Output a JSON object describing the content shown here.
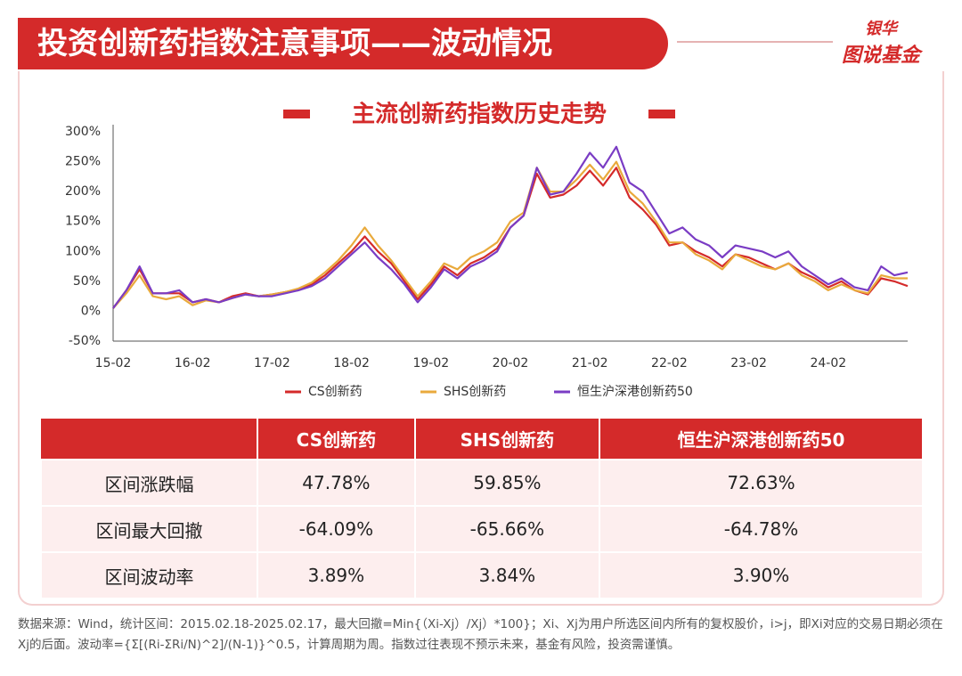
{
  "header": {
    "title": "投资创新药指数注意事项——波动情况",
    "brand_top": "银华",
    "brand_bottom": "图说基金"
  },
  "chart_data": {
    "type": "line",
    "title": "主流创新药指数历史走势",
    "categories": [
      "15-02",
      null,
      null,
      null,
      null,
      null,
      "16-02",
      null,
      null,
      null,
      null,
      null,
      "17-02",
      null,
      null,
      null,
      null,
      null,
      "18-02",
      null,
      null,
      null,
      null,
      null,
      "19-02",
      null,
      null,
      null,
      null,
      null,
      "20-02",
      null,
      null,
      null,
      null,
      null,
      "21-02",
      null,
      null,
      null,
      null,
      null,
      "22-02",
      null,
      null,
      null,
      null,
      null,
      "23-02",
      null,
      null,
      null,
      null,
      null,
      "24-02",
      null,
      null,
      null,
      null,
      null,
      null
    ],
    "series": [
      {
        "name": "CS创新药",
        "color": "#d42a2a",
        "values": [
          5,
          35,
          70,
          30,
          30,
          30,
          15,
          20,
          15,
          25,
          30,
          25,
          28,
          32,
          35,
          45,
          60,
          80,
          100,
          125,
          100,
          80,
          50,
          20,
          45,
          75,
          60,
          80,
          90,
          105,
          140,
          160,
          230,
          190,
          195,
          210,
          235,
          210,
          240,
          190,
          170,
          145,
          110,
          115,
          100,
          90,
          75,
          95,
          90,
          80,
          70,
          80,
          65,
          55,
          40,
          50,
          35,
          28,
          55,
          50,
          42
        ]
      },
      {
        "name": "SHS创新药",
        "color": "#e9aa3c",
        "values": [
          5,
          30,
          60,
          25,
          20,
          25,
          10,
          18,
          15,
          22,
          28,
          25,
          28,
          32,
          38,
          48,
          65,
          85,
          110,
          140,
          110,
          85,
          55,
          25,
          50,
          80,
          70,
          90,
          100,
          115,
          150,
          165,
          240,
          200,
          200,
          220,
          245,
          220,
          250,
          200,
          180,
          150,
          115,
          115,
          95,
          85,
          70,
          95,
          85,
          75,
          70,
          80,
          60,
          50,
          35,
          45,
          35,
          30,
          60,
          55,
          55
        ]
      },
      {
        "name": "恒生沪深港创新药50",
        "color": "#7a3cc4",
        "values": [
          5,
          35,
          75,
          30,
          30,
          35,
          15,
          20,
          15,
          22,
          28,
          25,
          25,
          30,
          35,
          42,
          55,
          75,
          95,
          115,
          90,
          70,
          45,
          15,
          40,
          70,
          55,
          75,
          85,
          100,
          140,
          160,
          240,
          195,
          200,
          230,
          265,
          240,
          275,
          215,
          200,
          165,
          130,
          140,
          120,
          110,
          90,
          110,
          105,
          100,
          90,
          100,
          75,
          60,
          45,
          55,
          40,
          35,
          75,
          60,
          65
        ]
      }
    ],
    "ylim": [
      -50,
      300
    ],
    "yticks": [
      {
        "value": -50,
        "label": "-50%"
      },
      {
        "value": 0,
        "label": "0%"
      },
      {
        "value": 50,
        "label": "50%"
      },
      {
        "value": 100,
        "label": "100%"
      },
      {
        "value": 150,
        "label": "150%"
      },
      {
        "value": 200,
        "label": "200%"
      },
      {
        "value": 250,
        "label": "250%"
      },
      {
        "value": 300,
        "label": "300%"
      }
    ],
    "grid": false,
    "legend": "bottom"
  },
  "table": {
    "columns": [
      "CS创新药",
      "SHS创新药",
      "恒生沪深港创新药50"
    ],
    "rows": [
      {
        "label": "区间涨跌幅",
        "cells": [
          "47.78%",
          "59.85%",
          "72.63%"
        ]
      },
      {
        "label": "区间最大回撤",
        "cells": [
          "-64.09%",
          "-65.66%",
          "-64.78%"
        ]
      },
      {
        "label": "区间波动率",
        "cells": [
          "3.89%",
          "3.84%",
          "3.90%"
        ]
      }
    ]
  },
  "footnote": "数据来源：Wind，统计区间：2015.02.18-2025.02.17，最大回撤=Min{（Xi-Xj）/Xj）*100}；Xi、Xj为用户所选区间内所有的复权股价，i>j，即Xi对应的交易日期必须在Xj的后面。波动率={Σ[(Ri-ΣRi/N)^2]/(N-1)}^0.5，计算周期为周。指数过往表现不预示未来，基金有风险，投资需谨慎。"
}
